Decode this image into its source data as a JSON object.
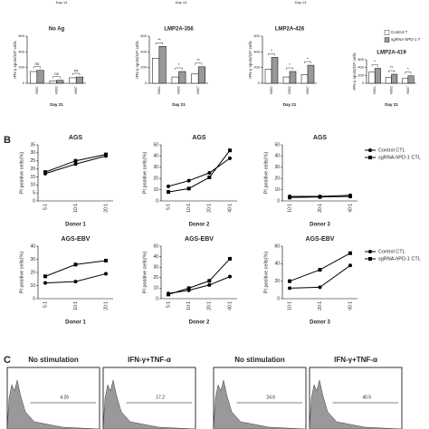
{
  "panel_labels": [
    "B",
    "C"
  ],
  "top_fragments": [
    "Day 14",
    "Day 14",
    "Day 14"
  ],
  "chart_data": [
    {
      "type": "bar",
      "title": "No Ag",
      "xlabel": "Day 21",
      "ylabel": "IFN-γ spots/10⁵ cells",
      "categories": [
        "HD01",
        "HD02",
        "HD07"
      ],
      "ylim": [
        0,
        600
      ],
      "yticks": [
        0,
        200,
        400,
        600
      ],
      "series": [
        {
          "color": "#ffffff",
          "values": [
            150,
            30,
            70
          ]
        },
        {
          "color": "#999999",
          "values": [
            165,
            38,
            80
          ]
        }
      ],
      "annotations": [
        "ns",
        "ns",
        "ns"
      ]
    },
    {
      "type": "bar",
      "title": "LMP2A-356",
      "xlabel": "Day 21",
      "ylabel": "IFN-γ spots/10⁵ cells",
      "categories": [
        "HD01",
        "HD02",
        "HD07"
      ],
      "ylim": [
        0,
        600
      ],
      "yticks": [
        0,
        200,
        400,
        600
      ],
      "series": [
        {
          "color": "#ffffff",
          "values": [
            320,
            80,
            120
          ]
        },
        {
          "color": "#999999",
          "values": [
            470,
            150,
            210
          ]
        }
      ],
      "annotations": [
        "**",
        "*",
        "**"
      ]
    },
    {
      "type": "bar",
      "title": "LMP2A-426",
      "xlabel": "Day 21",
      "ylabel": "IFN-γ spots/10⁵ cells",
      "categories": [
        "HD01",
        "HD02",
        "HD07"
      ],
      "ylim": [
        0,
        600
      ],
      "yticks": [
        0,
        200,
        400,
        600
      ],
      "series": [
        {
          "color": "#ffffff",
          "values": [
            180,
            80,
            110
          ]
        },
        {
          "color": "#999999",
          "values": [
            330,
            150,
            230
          ]
        }
      ],
      "annotations": [
        "*",
        "*",
        "*"
      ]
    },
    {
      "type": "bar",
      "title": "LMP2A-419",
      "xlabel": "Day 21",
      "ylabel": "IFN-γ spots/10⁵ cells",
      "legend": true,
      "categories": [
        "HD01",
        "HD02",
        "HD07"
      ],
      "ylim": [
        0,
        600
      ],
      "yticks": [
        0,
        200,
        400,
        600
      ],
      "series": [
        {
          "name": "Control T",
          "color": "#ffffff",
          "values": [
            290,
            150,
            120
          ]
        },
        {
          "name": "sgRNA-hPD-1 T",
          "color": "#999999",
          "values": [
            380,
            230,
            190
          ]
        }
      ],
      "annotations": [
        "*",
        "**",
        "*"
      ]
    },
    {
      "type": "line",
      "title": "AGS",
      "xlabel": "Donor 1",
      "ylabel": "PI positive cells(%)",
      "categories": [
        "5:1",
        "10:1",
        "20:1"
      ],
      "ylim": [
        0,
        35
      ],
      "yticks": [
        0,
        5,
        10,
        15,
        20,
        25,
        30,
        35
      ],
      "series": [
        {
          "color": "#000000",
          "marker": "circle",
          "values": [
            17,
            23,
            28
          ]
        },
        {
          "color": "#000000",
          "marker": "square",
          "values": [
            18,
            25,
            29
          ]
        }
      ]
    },
    {
      "type": "line",
      "title": "AGS",
      "xlabel": "Donor 2",
      "ylabel": "PI positive cells(%)",
      "categories": [
        "5:1",
        "10:1",
        "20:1",
        "40:1"
      ],
      "ylim": [
        0,
        50
      ],
      "yticks": [
        0,
        10,
        20,
        30,
        40,
        50
      ],
      "series": [
        {
          "color": "#000000",
          "marker": "circle",
          "values": [
            13,
            18,
            25,
            38
          ]
        },
        {
          "color": "#000000",
          "marker": "square",
          "values": [
            8,
            11,
            21,
            45
          ]
        }
      ]
    },
    {
      "type": "line",
      "title": "AGS",
      "xlabel": "Donor 3",
      "ylabel": "PI positive cells(%)",
      "legend": true,
      "categories": [
        "10:1",
        "20:1",
        "40:1"
      ],
      "ylim": [
        0,
        50
      ],
      "yticks": [
        0,
        10,
        20,
        30,
        40,
        50
      ],
      "series": [
        {
          "name": "Control CTL",
          "color": "#000000",
          "marker": "circle",
          "values": [
            4,
            4,
            5
          ]
        },
        {
          "name": "sgRNA-hPD-1 CTL",
          "color": "#000000",
          "marker": "square",
          "values": [
            3,
            3.5,
            4
          ]
        }
      ]
    },
    {
      "type": "line",
      "title": "AGS-EBV",
      "xlabel": "Donor 1",
      "ylabel": "PI positive cells(%)",
      "categories": [
        "5:1",
        "10:1",
        "20:1"
      ],
      "ylim": [
        0,
        40
      ],
      "yticks": [
        0,
        10,
        20,
        30,
        40
      ],
      "series": [
        {
          "color": "#000000",
          "marker": "circle",
          "values": [
            12,
            13,
            19
          ]
        },
        {
          "color": "#000000",
          "marker": "square",
          "values": [
            17,
            26,
            29
          ]
        }
      ]
    },
    {
      "type": "line",
      "title": "AGS-EBV",
      "xlabel": "Donor 2",
      "ylabel": "PI positive cells(%)",
      "categories": [
        "5:1",
        "10:1",
        "20:1",
        "40:1"
      ],
      "ylim": [
        0,
        50
      ],
      "yticks": [
        0,
        10,
        20,
        30,
        40,
        50
      ],
      "series": [
        {
          "color": "#000000",
          "marker": "circle",
          "values": [
            5,
            8,
            13,
            21
          ]
        },
        {
          "color": "#000000",
          "marker": "square",
          "values": [
            4,
            10,
            17,
            38
          ]
        }
      ]
    },
    {
      "type": "line",
      "title": "AGS-EBV",
      "xlabel": "Donor 3",
      "ylabel": "PI positive cells(%)",
      "legend": true,
      "categories": [
        "10:1",
        "20:1",
        "40:1"
      ],
      "ylim": [
        0,
        60
      ],
      "yticks": [
        0,
        20,
        40,
        60
      ],
      "series": [
        {
          "name": "Control CTL",
          "color": "#000000",
          "marker": "circle",
          "values": [
            12,
            13,
            38
          ]
        },
        {
          "name": "sgRNA-hPD-1 CTL",
          "color": "#000000",
          "marker": "square",
          "values": [
            20,
            33,
            52
          ]
        }
      ]
    }
  ],
  "flow_panels": [
    {
      "title": "No stimulation",
      "gate": "4.26"
    },
    {
      "title": "IFN-γ+TNF-α",
      "gate": "17.2"
    },
    {
      "title": "No stimulation",
      "gate": "24.6"
    },
    {
      "title": "IFN-γ+TNF-α",
      "gate": "40.5"
    }
  ]
}
